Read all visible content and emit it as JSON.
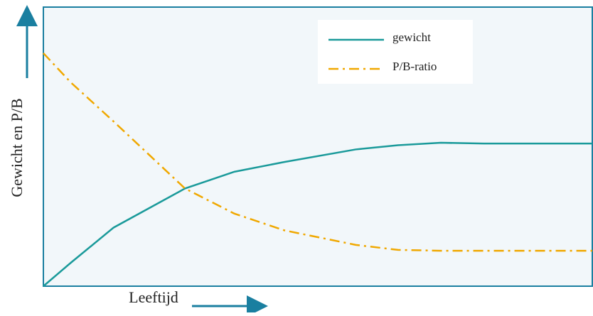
{
  "chart_data": {
    "type": "line",
    "xlabel": "Leeftijd",
    "ylabel": "Gewicht en P/B",
    "x": [
      0,
      5,
      12.8,
      25.8,
      34.8,
      43.9,
      56.9,
      64.6,
      72.4,
      80.2,
      100
    ],
    "series": [
      {
        "name": "gewicht",
        "color": "#1a9a9a",
        "style": "solid",
        "values": [
          0,
          8.4,
          21,
          35,
          41,
          44.5,
          49,
          50.5,
          51.4,
          51.1,
          51.1
        ]
      },
      {
        "name": "P/B-ratio",
        "color": "#f0a800",
        "style": "dashdot",
        "values": [
          83.5,
          73,
          59,
          35,
          26,
          20,
          14.8,
          13,
          12.7,
          12.7,
          12.7
        ]
      }
    ],
    "xlim": [
      0,
      100
    ],
    "ylim": [
      0,
      100
    ],
    "legend": "upper center"
  }
}
